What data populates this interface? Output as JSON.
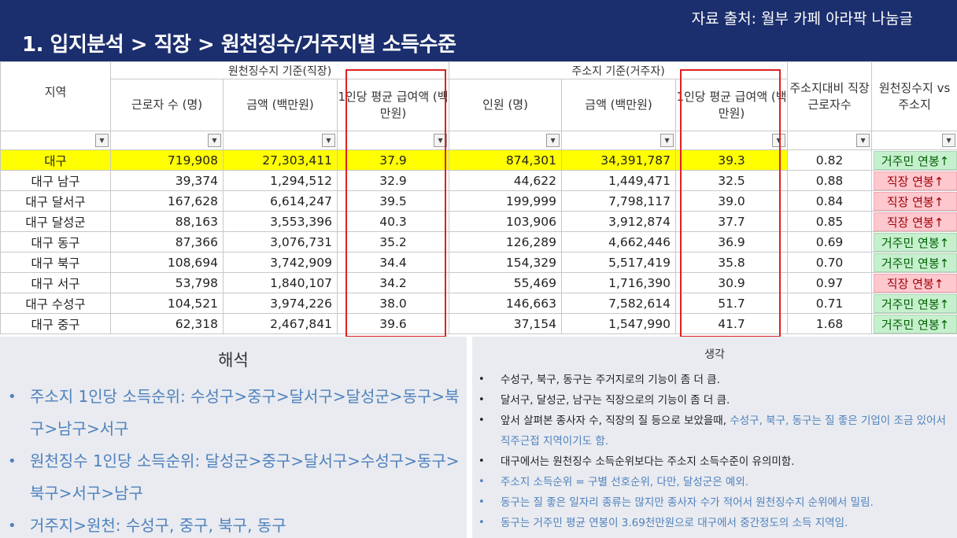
{
  "header": {
    "source": "자료 출처: 월부 카페 아라팍 나눔글",
    "title": "1. 입지분석 > 직장 > 원천징수/거주지별 소득수준"
  },
  "table": {
    "group_headers": [
      "원천징수지 기준(직장)",
      "주소지 기준(거주자)"
    ],
    "columns": [
      "지역",
      "근로자 수\n(명)",
      "금액\n(백만원)",
      "1인당\n평균 급여액\n(백만원)",
      "인원\n(명)",
      "금액\n(백만원)",
      "1인당\n평균 급여액\n(백만원)",
      "주소지대비\n직장근로자수",
      "원천징수지\nvs 주소지"
    ],
    "rows": [
      {
        "region": "대구",
        "workers": "719,908",
        "amount": "27,303,411",
        "avg": "37.9",
        "res_people": "874,301",
        "res_amount": "34,391,787",
        "res_avg": "39.3",
        "ratio": "0.82",
        "compare": "거주민 연봉↑",
        "compare_type": "res"
      },
      {
        "region": "대구 남구",
        "workers": "39,374",
        "amount": "1,294,512",
        "avg": "32.9",
        "res_people": "44,622",
        "res_amount": "1,449,471",
        "res_avg": "32.5",
        "ratio": "0.88",
        "compare": "직장 연봉↑",
        "compare_type": "work"
      },
      {
        "region": "대구  달서구",
        "workers": "167,628",
        "amount": "6,614,247",
        "avg": "39.5",
        "res_people": "199,999",
        "res_amount": "7,798,117",
        "res_avg": "39.0",
        "ratio": "0.84",
        "compare": "직장 연봉↑",
        "compare_type": "work"
      },
      {
        "region": "대구  달성군",
        "workers": "88,163",
        "amount": "3,553,396",
        "avg": "40.3",
        "res_people": "103,906",
        "res_amount": "3,912,874",
        "res_avg": "37.7",
        "ratio": "0.85",
        "compare": "직장 연봉↑",
        "compare_type": "work"
      },
      {
        "region": "대구 동구",
        "workers": "87,366",
        "amount": "3,076,731",
        "avg": "35.2",
        "res_people": "126,289",
        "res_amount": "4,662,446",
        "res_avg": "36.9",
        "ratio": "0.69",
        "compare": "거주민 연봉↑",
        "compare_type": "res"
      },
      {
        "region": "대구 북구",
        "workers": "108,694",
        "amount": "3,742,909",
        "avg": "34.4",
        "res_people": "154,329",
        "res_amount": "5,517,419",
        "res_avg": "35.8",
        "ratio": "0.70",
        "compare": "거주민 연봉↑",
        "compare_type": "res"
      },
      {
        "region": "대구 서구",
        "workers": "53,798",
        "amount": "1,840,107",
        "avg": "34.2",
        "res_people": "55,469",
        "res_amount": "1,716,390",
        "res_avg": "30.9",
        "ratio": "0.97",
        "compare": "직장 연봉↑",
        "compare_type": "work"
      },
      {
        "region": "대구 수성구",
        "workers": "104,521",
        "amount": "3,974,226",
        "avg": "38.0",
        "res_people": "146,663",
        "res_amount": "7,582,614",
        "res_avg": "51.7",
        "ratio": "0.71",
        "compare": "거주민 연봉↑",
        "compare_type": "res"
      },
      {
        "region": "대구 중구",
        "workers": "62,318",
        "amount": "2,467,841",
        "avg": "39.6",
        "res_people": "37,154",
        "res_amount": "1,547,990",
        "res_avg": "41.7",
        "ratio": "1.68",
        "compare": "거주민 연봉↑",
        "compare_type": "res"
      }
    ]
  },
  "interpretation": {
    "title": "해석",
    "items": [
      "주소지 1인당 소득순위: 수성구>중구>달서구>달성군>동구>북구>남구>서구",
      "원천징수 1인당 소득순위: 달성군>중구>달서구>수성구>동구>북구>서구>남구",
      "거주지>원천: 수성구, 중구, 북구, 동구"
    ]
  },
  "thoughts": {
    "title": "생각",
    "items": [
      {
        "text": "수성구, 북구, 동구는 주거지로의 기능이 좀 더 큼.",
        "blue": false
      },
      {
        "text": "달서구, 달성군, 남구는 직장으로의 기능이 좀 더 큼.",
        "blue": false
      },
      {
        "text": "앞서 살펴본 종사자 수, 직장의 질 등으로 보았을때, ",
        "text_blue": "수성구, 북구, 동구는 질 좋은 기업이 조금 있어서 직주근접 지역이기도 함.",
        "blue": false
      },
      {
        "text": "대구에서는 원천징수 소득순위보다는 주소지 소득수준이 유의미함.",
        "blue": false
      },
      {
        "text": "주소지 소득순위 = 구별 선호순위, 다만, 달성군은 예외.",
        "blue": true
      },
      {
        "text": "동구는 질 좋은 일자리 종류는 많지만 종사자 수가 적어서 원천징수지 순위에서 밀림.",
        "blue": true
      },
      {
        "text": "동구는 거주민 평균 연봉이 3.69천만원으로 대구에서 중간정도의 소득 지역임.",
        "blue": true
      }
    ]
  },
  "colors": {
    "header_bg": "#1b2e6d",
    "highlight_row": "#ffff00",
    "badge_res_bg": "#c6efce",
    "badge_work_bg": "#ffc7ce",
    "redbox": "#e02020",
    "accent_blue": "#4f81bd"
  },
  "icons": {
    "filter_active": "filter-funnel-icon",
    "filter_dropdown": "dropdown-arrow-icon"
  }
}
